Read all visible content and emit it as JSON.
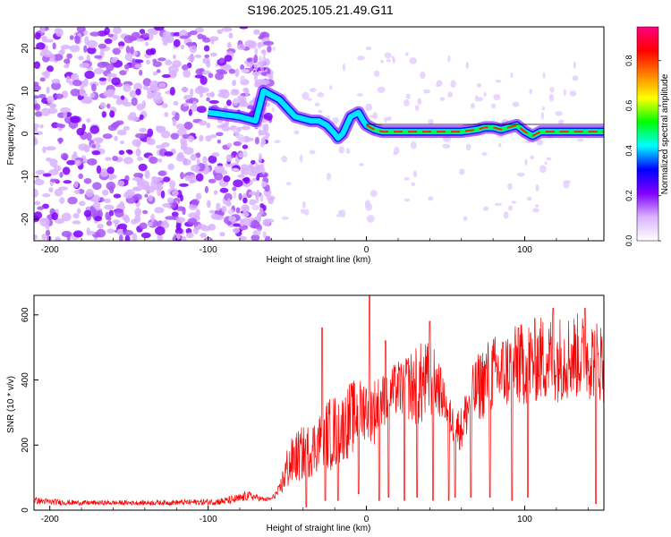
{
  "title": "S196.2025.105.21.49.G11",
  "chart_data": [
    {
      "type": "heatmap",
      "xlabel": "Height of straight line (km)",
      "ylabel": "Frequency (Hz)",
      "xlim": [
        -210,
        150
      ],
      "ylim": [
        -25,
        25
      ],
      "xticks": [
        -200,
        -100,
        0,
        100
      ],
      "yticks": [
        -20,
        -10,
        0,
        10,
        20
      ],
      "colorbar": {
        "label": "Normalized spectral amplitude",
        "range": [
          0,
          0.95
        ],
        "ticks": [
          "0.0",
          "0.2",
          "0.4",
          "0.6",
          "0.8"
        ],
        "colors": [
          "#ffffff",
          "#d9b3ff",
          "#8000ff",
          "#0000ff",
          "#00ffff",
          "#00ff00",
          "#ffff00",
          "#ff8000",
          "#ff0000",
          "#ff0080"
        ]
      },
      "ridge": {
        "x": [
          -100,
          -90,
          -80,
          -70,
          -65,
          -60,
          -55,
          -50,
          -45,
          -40,
          -35,
          -30,
          -25,
          -20,
          -18,
          -15,
          -10,
          -5,
          -2,
          0,
          5,
          10,
          20,
          40,
          60,
          70,
          75,
          80,
          85,
          90,
          95,
          100,
          105,
          110,
          120,
          130,
          140,
          150
        ],
        "y": [
          5,
          4.5,
          4,
          3,
          10,
          9,
          8,
          6,
          4,
          3.5,
          3,
          3,
          2,
          0,
          -1,
          0,
          4,
          5,
          3,
          2,
          1,
          0.5,
          0.5,
          0.5,
          0.5,
          1,
          1.5,
          1.5,
          1,
          1.5,
          2,
          0.5,
          -0.5,
          0.5,
          0.5,
          0.5,
          0.5,
          0.5
        ]
      }
    },
    {
      "type": "line",
      "xlabel": "Height of straight line (km)",
      "ylabel": "SNR (10 * v/v)",
      "xlim": [
        -210,
        150
      ],
      "ylim": [
        0,
        660
      ],
      "xticks": [
        -200,
        -100,
        0,
        100
      ],
      "yticks": [
        0,
        200,
        400,
        600
      ],
      "color": "#ff0000",
      "envelope": {
        "x": [
          -210,
          -200,
          -180,
          -160,
          -140,
          -120,
          -100,
          -90,
          -80,
          -75,
          -70,
          -65,
          -60,
          -55,
          -50,
          -45,
          -40,
          -35,
          -30,
          -25,
          -20,
          -15,
          -10,
          -5,
          0,
          5,
          10,
          15,
          20,
          25,
          30,
          35,
          40,
          45,
          50,
          55,
          60,
          65,
          70,
          75,
          80,
          85,
          90,
          100,
          110,
          120,
          130,
          140,
          150
        ],
        "low": [
          20,
          15,
          15,
          15,
          15,
          15,
          15,
          15,
          20,
          30,
          30,
          25,
          30,
          40,
          60,
          80,
          90,
          100,
          120,
          120,
          120,
          150,
          160,
          200,
          220,
          200,
          250,
          280,
          290,
          280,
          260,
          250,
          280,
          290,
          270,
          200,
          180,
          240,
          270,
          280,
          300,
          300,
          310,
          320,
          330,
          330,
          340,
          340,
          330
        ],
        "high": [
          40,
          35,
          30,
          30,
          30,
          32,
          35,
          40,
          50,
          60,
          50,
          40,
          40,
          80,
          200,
          240,
          260,
          270,
          300,
          340,
          360,
          360,
          400,
          400,
          420,
          410,
          420,
          440,
          460,
          480,
          500,
          520,
          520,
          480,
          380,
          320,
          320,
          420,
          480,
          520,
          540,
          540,
          560,
          580,
          600,
          600,
          610,
          600,
          580
        ],
        "dips": [
          [
            -38,
            10
          ],
          [
            -26,
            30
          ],
          [
            -18,
            30
          ],
          [
            -5,
            50
          ],
          [
            2,
            20
          ],
          [
            8,
            30
          ],
          [
            14,
            40
          ],
          [
            24,
            30
          ],
          [
            32,
            40
          ],
          [
            42,
            30
          ],
          [
            52,
            30
          ],
          [
            56,
            40
          ],
          [
            66,
            40
          ],
          [
            78,
            40
          ],
          [
            92,
            30
          ],
          [
            102,
            40
          ],
          [
            145,
            20
          ]
        ],
        "spikes": [
          [
            -28,
            560
          ],
          [
            2,
            660
          ],
          [
            12,
            520
          ],
          [
            26,
            450
          ],
          [
            40,
            580
          ],
          [
            96,
            560
          ],
          [
            118,
            620
          ],
          [
            138,
            620
          ]
        ]
      }
    }
  ]
}
